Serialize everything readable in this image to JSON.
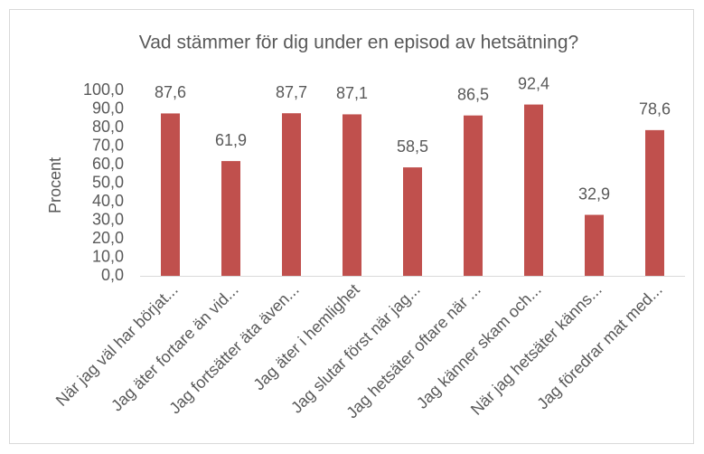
{
  "chart_data": {
    "type": "bar",
    "title": "Vad stämmer för dig under en episod av hetsätning?",
    "y_label": "Procent",
    "categories": [
      "När jag väl har börjat...",
      "Jag äter fortare än vid...",
      "Jag fortsätter äta även...",
      "Jag äter i hemlighet",
      "Jag slutar först när jag...",
      "Jag hetsäter oftare när ...",
      "Jag känner skam och...",
      "När jag hetsäter känns...",
      "Jag föredrar mat med..."
    ],
    "values": [
      87.6,
      61.9,
      87.7,
      87.1,
      58.5,
      86.5,
      92.4,
      32.9,
      78.6
    ],
    "value_labels": [
      "87,6",
      "61,9",
      "87,7",
      "87,1",
      "58,5",
      "86,5",
      "92,4",
      "32,9",
      "78,6"
    ],
    "color": "#c0504d",
    "ylim": [
      0,
      100
    ],
    "yticks": [
      {
        "value": 0,
        "label": "0,0"
      },
      {
        "value": 10,
        "label": "10,0"
      },
      {
        "value": 20,
        "label": "20,0"
      },
      {
        "value": 30,
        "label": "30,0"
      },
      {
        "value": 40,
        "label": "40,0"
      },
      {
        "value": 50,
        "label": "50,0"
      },
      {
        "value": 60,
        "label": "60,0"
      },
      {
        "value": 70,
        "label": "70,0"
      },
      {
        "value": 80,
        "label": "80,0"
      },
      {
        "value": 90,
        "label": "90,0"
      },
      {
        "value": 100,
        "label": "100,0"
      }
    ],
    "grid": false
  }
}
